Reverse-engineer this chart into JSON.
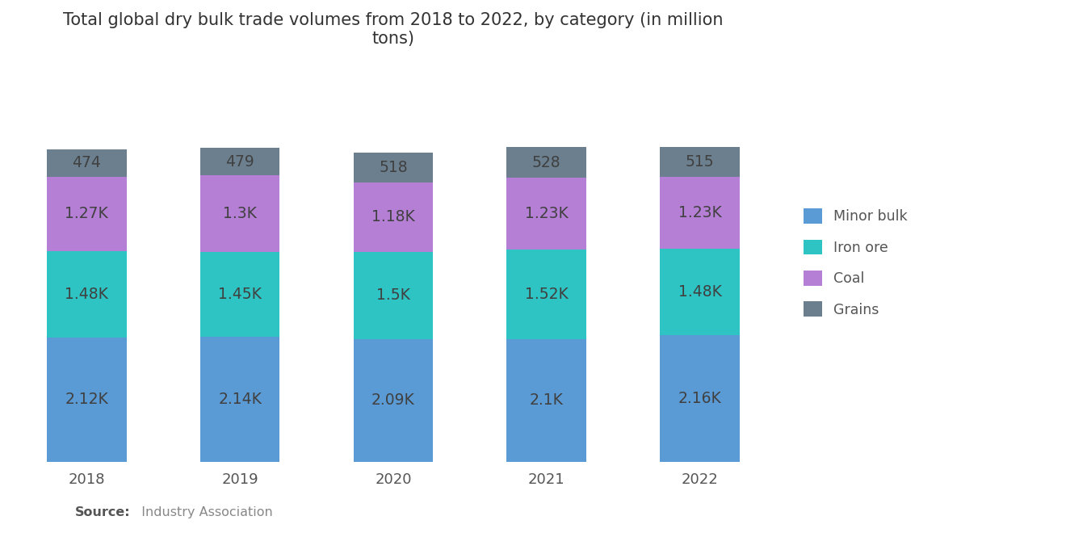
{
  "title": "Total global dry bulk trade volumes from 2018 to 2022, by category (in million\ntons)",
  "years": [
    "2018",
    "2019",
    "2020",
    "2021",
    "2022"
  ],
  "categories": [
    "Minor bulk",
    "Iron ore",
    "Coal",
    "Grains"
  ],
  "labels": {
    "Minor bulk": [
      "2.12K",
      "2.14K",
      "2.09K",
      "2.1K",
      "2.16K"
    ],
    "Iron ore": [
      "1.48K",
      "1.45K",
      "1.5K",
      "1.52K",
      "1.48K"
    ],
    "Coal": [
      "1.27K",
      "1.3K",
      "1.18K",
      "1.23K",
      "1.23K"
    ],
    "Grains": [
      "474",
      "479",
      "518",
      "528",
      "515"
    ]
  },
  "values": {
    "Minor bulk": [
      2120,
      2140,
      2090,
      2100,
      2160
    ],
    "Iron ore": [
      1480,
      1450,
      1500,
      1520,
      1480
    ],
    "Coal": [
      1270,
      1300,
      1180,
      1230,
      1230
    ],
    "Grains": [
      474,
      479,
      518,
      528,
      515
    ]
  },
  "colors": {
    "Minor bulk": "#5B9BD5",
    "Iron ore": "#2EC4C4",
    "Coal": "#B57FD6",
    "Grains": "#6B7F8E"
  },
  "bar_width": 0.52,
  "background_color": "#FFFFFF",
  "text_color": "#555555",
  "label_color": "#404040",
  "source_bold": "Source:",
  "source_normal": "  Industry Association",
  "ylim": [
    0,
    6800
  ],
  "label_fontsize": 13.5,
  "title_fontsize": 15,
  "tick_fontsize": 13,
  "legend_fontsize": 12.5
}
